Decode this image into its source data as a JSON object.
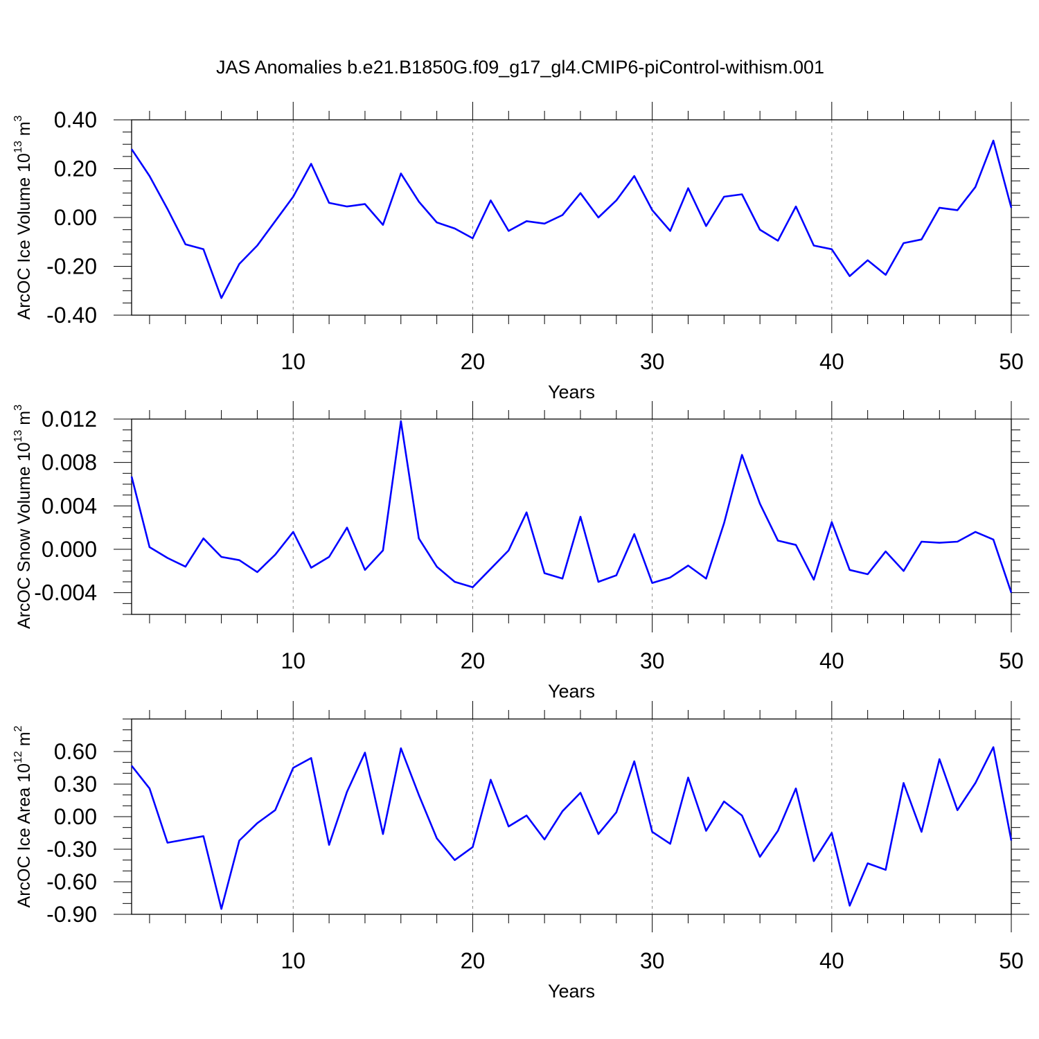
{
  "title": "JAS Anomalies b.e21.B1850G.f09_g17_gl4.CMIP6-piControl-withism.001",
  "line_color": "#0000ff",
  "chart_data": [
    {
      "type": "line",
      "ylabel_main": "ArcOC Ice Volume 10",
      "ylabel_exp": "13",
      "ylabel_unit": " m",
      "ylabel_unit_exp": "3",
      "xlabel": "Years",
      "xlim": [
        1,
        50
      ],
      "ylim": [
        -0.4,
        0.4
      ],
      "x_ticks": [
        10,
        20,
        30,
        40,
        50
      ],
      "x_tick_labels": [
        "10",
        "20",
        "30",
        "40",
        "50"
      ],
      "y_ticks": [
        -0.4,
        -0.2,
        0.0,
        0.2,
        0.4
      ],
      "y_tick_labels": [
        "-0.40",
        "-0.20",
        "0.00",
        "0.20",
        "0.40"
      ],
      "y_minor_step": 0.05,
      "x": [
        1,
        2,
        3,
        4,
        5,
        6,
        7,
        8,
        9,
        10,
        11,
        12,
        13,
        14,
        15,
        16,
        17,
        18,
        19,
        20,
        21,
        22,
        23,
        24,
        25,
        26,
        27,
        28,
        29,
        30,
        31,
        32,
        33,
        34,
        35,
        36,
        37,
        38,
        39,
        40,
        41,
        42,
        43,
        44,
        45,
        46,
        47,
        48,
        49,
        50
      ],
      "values": [
        0.28,
        0.17,
        0.035,
        -0.11,
        -0.13,
        -0.33,
        -0.19,
        -0.115,
        -0.015,
        0.085,
        0.22,
        0.06,
        0.045,
        0.055,
        -0.03,
        0.18,
        0.065,
        -0.02,
        -0.045,
        -0.085,
        0.07,
        -0.055,
        -0.015,
        -0.025,
        0.01,
        0.1,
        0.0,
        0.07,
        0.17,
        0.03,
        -0.055,
        0.12,
        -0.035,
        0.085,
        0.095,
        -0.05,
        -0.095,
        0.045,
        -0.115,
        -0.13,
        -0.24,
        -0.175,
        -0.235,
        -0.105,
        -0.09,
        0.04,
        0.03,
        0.125,
        0.315,
        0.04
      ]
    },
    {
      "type": "line",
      "ylabel_main": "ArcOC Snow Volume 10",
      "ylabel_exp": "13",
      "ylabel_unit": " m",
      "ylabel_unit_exp": "3",
      "xlabel": "Years",
      "xlim": [
        1,
        50
      ],
      "ylim": [
        -0.006,
        0.012
      ],
      "x_ticks": [
        10,
        20,
        30,
        40,
        50
      ],
      "x_tick_labels": [
        "10",
        "20",
        "30",
        "40",
        "50"
      ],
      "y_ticks": [
        -0.004,
        0.0,
        0.004,
        0.008,
        0.012
      ],
      "y_tick_labels": [
        "-0.004",
        "0.000",
        "0.004",
        "0.008",
        "0.012"
      ],
      "y_minor_step": 0.001,
      "x": [
        1,
        2,
        3,
        4,
        5,
        6,
        7,
        8,
        9,
        10,
        11,
        12,
        13,
        14,
        15,
        16,
        17,
        18,
        19,
        20,
        21,
        22,
        23,
        24,
        25,
        26,
        27,
        28,
        29,
        30,
        31,
        32,
        33,
        34,
        35,
        36,
        37,
        38,
        39,
        40,
        41,
        42,
        43,
        44,
        45,
        46,
        47,
        48,
        49,
        50
      ],
      "values": [
        0.0067,
        0.0002,
        -0.0008,
        -0.0016,
        0.001,
        -0.0007,
        -0.001,
        -0.0021,
        -0.0005,
        0.0016,
        -0.0017,
        -0.0007,
        0.002,
        -0.0019,
        -0.0001,
        0.0118,
        0.001,
        -0.0016,
        -0.003,
        -0.0035,
        -0.0018,
        -0.0001,
        0.0034,
        -0.0022,
        -0.0027,
        0.003,
        -0.003,
        -0.0024,
        0.0014,
        -0.0031,
        -0.0026,
        -0.0015,
        -0.0027,
        0.0024,
        0.0087,
        0.0042,
        0.0008,
        0.0004,
        -0.0028,
        0.0025,
        -0.0019,
        -0.0023,
        -0.0002,
        -0.002,
        0.0007,
        0.0006,
        0.0007,
        0.0016,
        0.0009,
        -0.004
      ]
    },
    {
      "type": "line",
      "ylabel_main": "ArcOC Ice Area 10",
      "ylabel_exp": "12",
      "ylabel_unit": " m",
      "ylabel_unit_exp": "2",
      "xlabel": "Years",
      "xlim": [
        1,
        50
      ],
      "ylim": [
        -0.9,
        0.9
      ],
      "x_ticks": [
        10,
        20,
        30,
        40,
        50
      ],
      "x_tick_labels": [
        "10",
        "20",
        "30",
        "40",
        "50"
      ],
      "y_ticks": [
        -0.9,
        -0.6,
        -0.3,
        0.0,
        0.3,
        0.6
      ],
      "y_tick_labels": [
        "-0.90",
        "-0.60",
        "-0.30",
        "0.00",
        "0.30",
        "0.60"
      ],
      "y_minor_step": 0.1,
      "x": [
        1,
        2,
        3,
        4,
        5,
        6,
        7,
        8,
        9,
        10,
        11,
        12,
        13,
        14,
        15,
        16,
        17,
        18,
        19,
        20,
        21,
        22,
        23,
        24,
        25,
        26,
        27,
        28,
        29,
        30,
        31,
        32,
        33,
        34,
        35,
        36,
        37,
        38,
        39,
        40,
        41,
        42,
        43,
        44,
        45,
        46,
        47,
        48,
        49,
        50
      ],
      "values": [
        0.47,
        0.26,
        -0.24,
        -0.21,
        -0.18,
        -0.85,
        -0.22,
        -0.06,
        0.06,
        0.45,
        0.54,
        -0.26,
        0.23,
        0.59,
        -0.16,
        0.63,
        0.2,
        -0.2,
        -0.4,
        -0.28,
        0.34,
        -0.09,
        0.01,
        -0.21,
        0.05,
        0.22,
        -0.16,
        0.04,
        0.51,
        -0.14,
        -0.25,
        0.36,
        -0.13,
        0.14,
        0.01,
        -0.37,
        -0.13,
        0.26,
        -0.41,
        -0.15,
        -0.82,
        -0.43,
        -0.49,
        0.31,
        -0.14,
        0.53,
        0.06,
        0.31,
        0.64,
        -0.22
      ]
    }
  ]
}
